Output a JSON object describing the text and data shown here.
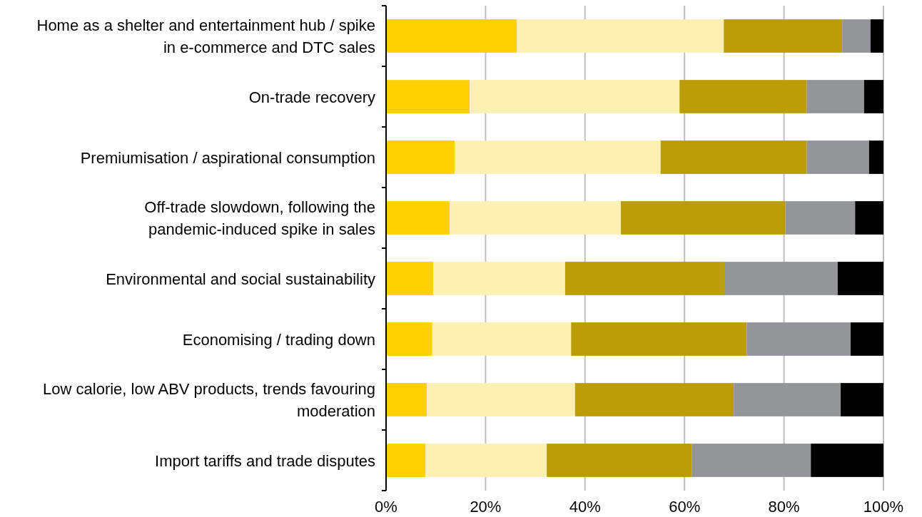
{
  "chart_data": {
    "type": "bar",
    "orientation": "horizontal",
    "stacked": true,
    "categories": [
      "Home as a shelter and entertainment hub / spike in e-commerce and DTC sales",
      "On-trade recovery",
      "Premiumisation / aspirational consumption",
      "Off-trade slowdown, following the pandemic-induced spike in sales",
      "Environmental and social sustainability",
      "Economising / trading down",
      "Low calorie, low ABV products, trends favouring moderation",
      "Import tariffs and trade disputes"
    ],
    "series": [
      {
        "color": "#ffd100",
        "values": [
          26.3,
          16.8,
          13.8,
          12.8,
          9.5,
          9.3,
          8.2,
          7.9
        ]
      },
      {
        "color": "#fdf0b3",
        "values": [
          41.6,
          42.2,
          41.4,
          34.4,
          26.5,
          27.9,
          29.8,
          24.4
        ]
      },
      {
        "color": "#bb9d07",
        "values": [
          23.8,
          25.6,
          29.4,
          33.1,
          32.0,
          35.3,
          31.9,
          29.2
        ]
      },
      {
        "color": "#939598",
        "values": [
          5.7,
          11.5,
          12.5,
          14.0,
          22.8,
          20.9,
          21.5,
          23.9
        ]
      },
      {
        "color": "#000000",
        "values": [
          2.6,
          3.9,
          2.9,
          5.7,
          9.2,
          6.6,
          8.6,
          14.6
        ]
      }
    ],
    "xlim": [
      0,
      100
    ],
    "xticks": [
      {
        "value": 0,
        "label": "0%"
      },
      {
        "value": 20,
        "label": "20%"
      },
      {
        "value": 40,
        "label": "40%"
      },
      {
        "value": 60,
        "label": "60%"
      },
      {
        "value": 80,
        "label": "80%"
      },
      {
        "value": 100,
        "label": "100%"
      }
    ],
    "grid": "x"
  }
}
